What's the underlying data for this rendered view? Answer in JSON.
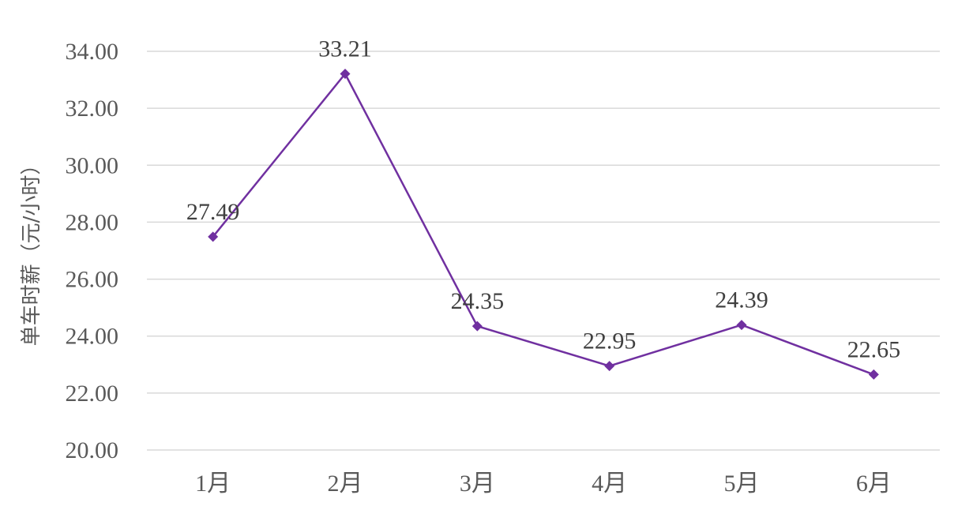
{
  "chart_data": {
    "type": "line",
    "title": "",
    "xlabel": "",
    "ylabel": "单车时薪（元/小时）",
    "categories": [
      "1月",
      "2月",
      "3月",
      "4月",
      "5月",
      "6月"
    ],
    "series": [
      {
        "values": [
          27.49,
          33.21,
          24.35,
          22.95,
          24.39,
          22.65
        ],
        "color": "#7030a0"
      }
    ],
    "ylim": [
      20,
      34
    ],
    "yticks": [
      "20.00",
      "22.00",
      "24.00",
      "26.00",
      "28.00",
      "30.00",
      "32.00",
      "34.00"
    ],
    "data_labels": [
      "27.49",
      "33.21",
      "24.35",
      "22.95",
      "24.39",
      "22.65"
    ],
    "grid": true,
    "legend": "none",
    "marker": "diamond"
  }
}
